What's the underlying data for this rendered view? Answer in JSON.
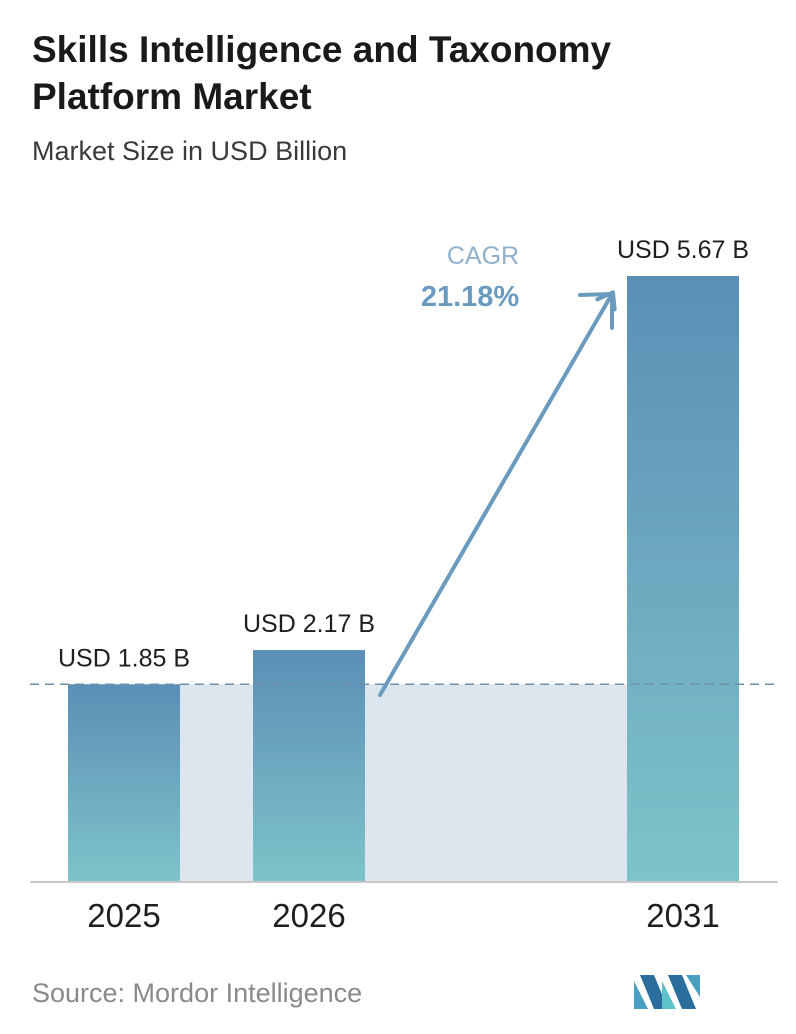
{
  "header": {
    "title": "Skills Intelligence and Taxonomy Platform Market",
    "subtitle": "Market Size in USD Billion"
  },
  "footer": {
    "source": "Source: Mordor Intelligence",
    "logo_icon": "mordor-intelligence-logo-icon"
  },
  "chart_data": {
    "type": "bar",
    "title": "Skills Intelligence and Taxonomy Platform Market",
    "subtitle": "Market Size in USD Billion",
    "categories": [
      "2025",
      "2026",
      "2031"
    ],
    "values": [
      1.85,
      2.17,
      5.67
    ],
    "data_labels": [
      "USD 1.85 B",
      "USD 2.17 B",
      "USD 5.67 B"
    ],
    "annotation": {
      "label": "CAGR",
      "value": "21.18%"
    },
    "reference_line_value": 1.85,
    "colors": {
      "bar_top": "#5b8fb6",
      "bar_bottom": "#7ec3c9",
      "shade": "#dce6ef",
      "arrow": "#6a9bbf",
      "cagr_label": "#8fb1cc",
      "cagr_value": "#6a9bbf",
      "dashed_line": "#6e90a8",
      "axis": "#c8c8c8"
    },
    "xlabel": "",
    "ylabel": "",
    "grid": false
  }
}
